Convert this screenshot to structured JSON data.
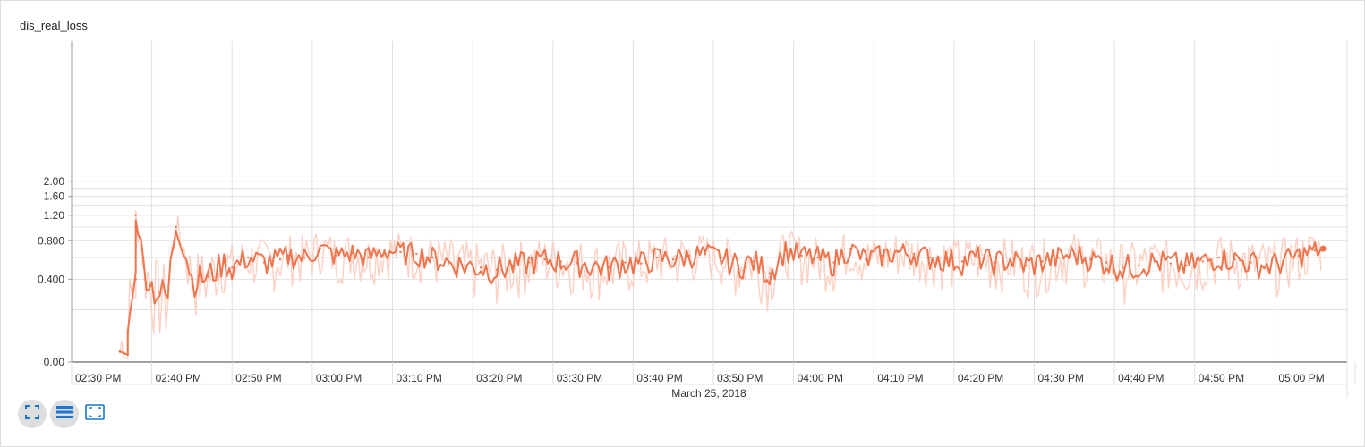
{
  "chart_data": {
    "type": "line",
    "title": "dis_real_loss",
    "xlabel": "March 25, 2018",
    "ylabel": "",
    "x_ticks": [
      "02:30 PM",
      "02:40 PM",
      "02:50 PM",
      "03:00 PM",
      "03:10 PM",
      "03:20 PM",
      "03:30 PM",
      "03:40 PM",
      "03:50 PM",
      "04:00 PM",
      "04:10 PM",
      "04:20 PM",
      "04:30 PM",
      "04:40 PM",
      "04:50 PM",
      "05:00 PM"
    ],
    "y_ticks": [
      "0.00",
      "0.400",
      "0.800",
      "1.20",
      "1.60",
      "2.00"
    ],
    "y_scale": "log",
    "xlim": [
      "02:30 PM",
      "05:09 PM"
    ],
    "ylim": [
      0,
      2.2
    ],
    "grid": true,
    "series": [
      {
        "x": [
          "02:36 PM",
          "02:37 PM",
          "02:37 PM",
          "02:38 PM",
          "02:38 PM",
          "02:39 PM",
          "02:40 PM",
          "02:41 PM",
          "02:42 PM",
          "02:43 PM",
          "02:45 PM",
          "02:47 PM",
          "02:49 PM",
          "02:50 PM",
          "02:52 PM",
          "02:54 PM",
          "02:56 PM",
          "02:57 PM",
          "02:59 PM",
          "03:01 PM",
          "03:03 PM",
          "03:05 PM",
          "03:07 PM",
          "03:09 PM",
          "03:11 PM",
          "03:13 PM",
          "03:15 PM",
          "03:17 PM",
          "03:19 PM",
          "03:21 PM",
          "03:23 PM",
          "03:25 PM",
          "03:27 PM",
          "03:29 PM",
          "03:31 PM",
          "03:33 PM",
          "03:35 PM",
          "03:37 PM",
          "03:39 PM",
          "03:41 PM",
          "03:43 PM",
          "03:45 PM",
          "03:47 PM",
          "03:49 PM",
          "03:51 PM",
          "03:53 PM",
          "03:55 PM",
          "03:57 PM",
          "03:59 PM",
          "04:01 PM",
          "04:03 PM",
          "04:05 PM",
          "04:07 PM",
          "04:09 PM",
          "04:11 PM",
          "04:13 PM",
          "04:15 PM",
          "04:17 PM",
          "04:19 PM",
          "04:21 PM",
          "04:23 PM",
          "04:25 PM",
          "04:27 PM",
          "04:29 PM",
          "04:31 PM",
          "04:33 PM",
          "04:35 PM",
          "04:37 PM",
          "04:39 PM",
          "04:41 PM",
          "04:43 PM",
          "04:45 PM",
          "04:47 PM",
          "04:49 PM",
          "04:51 PM",
          "04:53 PM",
          "04:55 PM",
          "04:57 PM",
          "04:59 PM",
          "05:01 PM",
          "05:03 PM",
          "05:05 PM",
          "05:06 PM"
        ],
        "values": [
          0.03,
          0.02,
          0.1,
          0.4,
          1.2,
          0.5,
          0.35,
          0.3,
          0.27,
          1.0,
          0.4,
          0.42,
          0.55,
          0.5,
          0.6,
          0.55,
          0.58,
          0.62,
          0.6,
          0.7,
          0.62,
          0.65,
          0.6,
          0.68,
          0.66,
          0.64,
          0.6,
          0.55,
          0.52,
          0.5,
          0.48,
          0.52,
          0.55,
          0.58,
          0.56,
          0.55,
          0.52,
          0.5,
          0.55,
          0.54,
          0.6,
          0.58,
          0.62,
          0.64,
          0.6,
          0.52,
          0.56,
          0.45,
          0.68,
          0.62,
          0.6,
          0.55,
          0.7,
          0.58,
          0.62,
          0.66,
          0.64,
          0.6,
          0.58,
          0.56,
          0.6,
          0.55,
          0.58,
          0.52,
          0.56,
          0.6,
          0.64,
          0.58,
          0.55,
          0.5,
          0.52,
          0.56,
          0.54,
          0.52,
          0.56,
          0.6,
          0.58,
          0.55,
          0.52,
          0.56,
          0.62,
          0.68,
          0.7
        ]
      }
    ]
  },
  "colors": {
    "line": "#f0744c",
    "line_light": "#fbd3c6",
    "grid": "#e0e0e0",
    "axis": "#9e9e9e",
    "icon_blue": "#1976d2"
  },
  "toolbar": {
    "icons": [
      "fit-domain-icon",
      "log-scale-icon",
      "zoom-reset-icon"
    ]
  }
}
